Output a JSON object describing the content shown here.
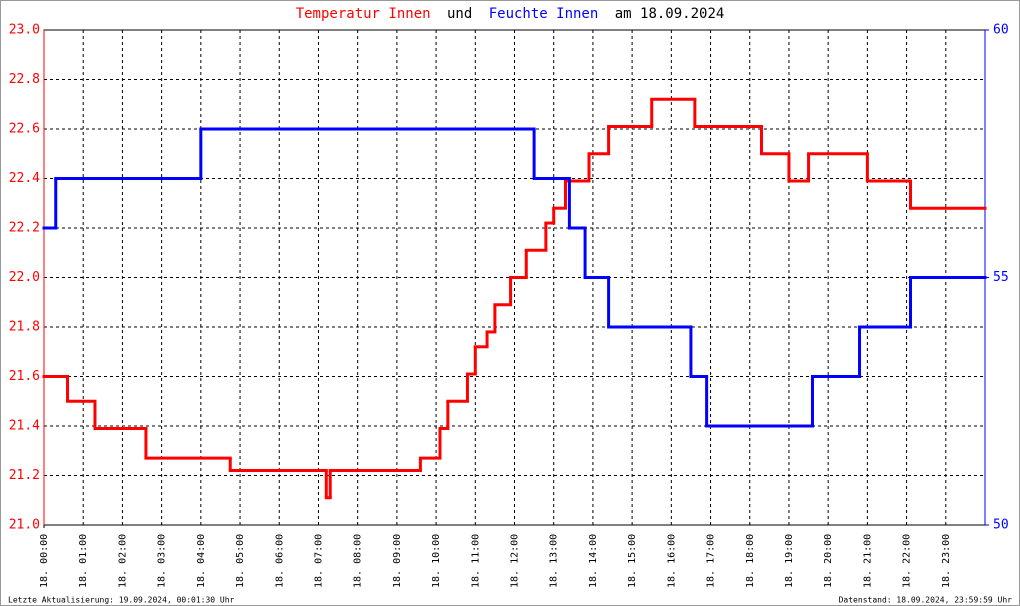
{
  "chart_data": {
    "type": "line",
    "step": true,
    "title_join": "und",
    "title_tail": "am 18.09.2024",
    "footer_left": "Letzte Aktualisierung: 19.09.2024, 00:01:30 Uhr",
    "footer_right": "Datenstand: 18.09.2024, 23:59:59 Uhr",
    "xlim": [
      0,
      24
    ],
    "xticks": [
      {
        "value": 0,
        "label": "18. 00:00"
      },
      {
        "value": 1,
        "label": "18. 01:00"
      },
      {
        "value": 2,
        "label": "18. 02:00"
      },
      {
        "value": 3,
        "label": "18. 03:00"
      },
      {
        "value": 4,
        "label": "18. 04:00"
      },
      {
        "value": 5,
        "label": "18. 05:00"
      },
      {
        "value": 6,
        "label": "18. 06:00"
      },
      {
        "value": 7,
        "label": "18. 07:00"
      },
      {
        "value": 8,
        "label": "18. 08:00"
      },
      {
        "value": 9,
        "label": "18. 09:00"
      },
      {
        "value": 10,
        "label": "18. 10:00"
      },
      {
        "value": 11,
        "label": "18. 11:00"
      },
      {
        "value": 12,
        "label": "18. 12:00"
      },
      {
        "value": 13,
        "label": "18. 13:00"
      },
      {
        "value": 14,
        "label": "18. 14:00"
      },
      {
        "value": 15,
        "label": "18. 15:00"
      },
      {
        "value": 16,
        "label": "18. 16:00"
      },
      {
        "value": 17,
        "label": "18. 17:00"
      },
      {
        "value": 18,
        "label": "18. 18:00"
      },
      {
        "value": 19,
        "label": "18. 19:00"
      },
      {
        "value": 20,
        "label": "18. 20:00"
      },
      {
        "value": 21,
        "label": "18. 21:00"
      },
      {
        "value": 22,
        "label": "18. 22:00"
      },
      {
        "value": 23,
        "label": "18. 23:00"
      }
    ],
    "ylim": [
      21.0,
      23.0
    ],
    "yticks": [
      {
        "value": 21.0,
        "label": "21.0"
      },
      21.2,
      21.4,
      21.6,
      21.8,
      {
        "value": 22.0,
        "label": "22.0"
      },
      22.2,
      22.4,
      22.6,
      22.8,
      {
        "value": 23.0,
        "label": "23.0"
      }
    ],
    "y2lim": [
      50,
      60
    ],
    "y2ticks": [
      50,
      55,
      60
    ],
    "grid": true,
    "series": [
      {
        "name": "Temperatur Innen",
        "color": "#ff0000",
        "x": [
          0,
          0.6,
          1.3,
          2.6,
          4.75,
          7.2,
          7.3,
          9.6,
          10.1,
          10.3,
          10.8,
          11.0,
          11.3,
          11.5,
          11.9,
          12.3,
          12.8,
          13.0,
          13.3,
          13.9,
          14.4,
          15.5,
          16.6,
          18.3,
          19.0,
          19.5,
          21.0,
          22.1
        ],
        "values": [
          21.6,
          21.5,
          21.39,
          21.27,
          21.22,
          21.11,
          21.22,
          21.27,
          21.39,
          21.5,
          21.61,
          21.72,
          21.78,
          21.89,
          22.0,
          22.11,
          22.22,
          22.28,
          22.39,
          22.5,
          22.61,
          22.72,
          22.61,
          22.5,
          22.39,
          22.5,
          22.39,
          22.28
        ]
      },
      {
        "name": "Feuchte Innen",
        "color": "#0000ff",
        "axis": "y2",
        "x": [
          0,
          0.3,
          4.0,
          12.5,
          13.4,
          13.8,
          14.4,
          16.5,
          16.9,
          19.6,
          20.8,
          22.1
        ],
        "values": [
          56,
          57,
          58,
          57,
          56,
          55,
          54,
          53,
          52,
          53,
          54,
          55
        ]
      }
    ]
  }
}
